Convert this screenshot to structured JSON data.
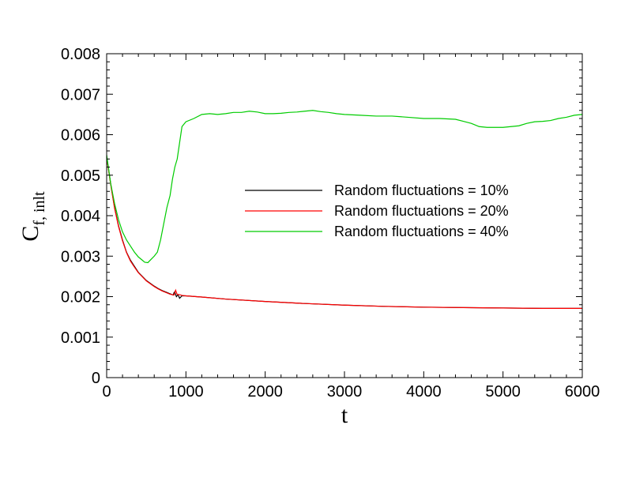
{
  "chart_data": {
    "type": "line",
    "title": "",
    "xlabel": "t",
    "ylabel": {
      "main": "C",
      "sub": "f, inlt"
    },
    "xlim": [
      0,
      6000
    ],
    "ylim": [
      0,
      0.008
    ],
    "xticks": [
      "0",
      "1000",
      "2000",
      "3000",
      "4000",
      "5000",
      "6000"
    ],
    "yticks": [
      "0",
      "0.001",
      "0.002",
      "0.003",
      "0.004",
      "0.005",
      "0.006",
      "0.007",
      "0.008"
    ],
    "grid": false,
    "legend_position": "center-right",
    "series": [
      {
        "name": "Random fluctuations = 10%",
        "color": "#000000",
        "points": [
          [
            0,
            0.00545
          ],
          [
            50,
            0.0048
          ],
          [
            100,
            0.0042
          ],
          [
            150,
            0.00375
          ],
          [
            200,
            0.0034
          ],
          [
            250,
            0.0031
          ],
          [
            300,
            0.0029
          ],
          [
            350,
            0.00275
          ],
          [
            400,
            0.0026
          ],
          [
            450,
            0.0025
          ],
          [
            500,
            0.0024
          ],
          [
            550,
            0.00233
          ],
          [
            600,
            0.00226
          ],
          [
            650,
            0.0022
          ],
          [
            700,
            0.00215
          ],
          [
            750,
            0.00211
          ],
          [
            800,
            0.00207
          ],
          [
            840,
            0.00204
          ],
          [
            850,
            0.0021
          ],
          [
            860,
            0.00212
          ],
          [
            870,
            0.00205
          ],
          [
            880,
            0.002
          ],
          [
            900,
            0.00205
          ],
          [
            920,
            0.00196
          ],
          [
            950,
            0.00202
          ],
          [
            1000,
            0.00202
          ],
          [
            1200,
            0.00199
          ],
          [
            1500,
            0.00194
          ],
          [
            2000,
            0.00188
          ],
          [
            2500,
            0.00183
          ],
          [
            3000,
            0.00179
          ],
          [
            3500,
            0.00176
          ],
          [
            4000,
            0.00174
          ],
          [
            4500,
            0.00173
          ],
          [
            5000,
            0.00172
          ],
          [
            5500,
            0.00171
          ],
          [
            6000,
            0.00171
          ]
        ]
      },
      {
        "name": "Random fluctuations = 20%",
        "color": "#ff0000",
        "points": [
          [
            0,
            0.00545
          ],
          [
            50,
            0.00478
          ],
          [
            100,
            0.00418
          ],
          [
            150,
            0.00373
          ],
          [
            200,
            0.00338
          ],
          [
            250,
            0.00309
          ],
          [
            300,
            0.00288
          ],
          [
            350,
            0.00273
          ],
          [
            400,
            0.00259
          ],
          [
            450,
            0.00249
          ],
          [
            500,
            0.00239
          ],
          [
            550,
            0.00232
          ],
          [
            600,
            0.00225
          ],
          [
            650,
            0.00219
          ],
          [
            700,
            0.00214
          ],
          [
            750,
            0.0021
          ],
          [
            800,
            0.00206
          ],
          [
            850,
            0.00204
          ],
          [
            870,
            0.00216
          ],
          [
            890,
            0.00205
          ],
          [
            920,
            0.00205
          ],
          [
            950,
            0.00203
          ],
          [
            1000,
            0.00202
          ],
          [
            1200,
            0.00199
          ],
          [
            1500,
            0.00194
          ],
          [
            2000,
            0.00188
          ],
          [
            2500,
            0.00183
          ],
          [
            3000,
            0.00179
          ],
          [
            3500,
            0.00176
          ],
          [
            4000,
            0.00174
          ],
          [
            4500,
            0.00173
          ],
          [
            5000,
            0.00172
          ],
          [
            5500,
            0.00171
          ],
          [
            6000,
            0.00171
          ]
        ]
      },
      {
        "name": "Random fluctuations = 40%",
        "color": "#00cc00",
        "points": [
          [
            0,
            0.0055
          ],
          [
            50,
            0.0048
          ],
          [
            100,
            0.0043
          ],
          [
            150,
            0.0039
          ],
          [
            200,
            0.0036
          ],
          [
            250,
            0.0034
          ],
          [
            300,
            0.00325
          ],
          [
            350,
            0.0031
          ],
          [
            400,
            0.00298
          ],
          [
            450,
            0.0029
          ],
          [
            480,
            0.00285
          ],
          [
            520,
            0.00284
          ],
          [
            560,
            0.00292
          ],
          [
            600,
            0.003
          ],
          [
            640,
            0.0031
          ],
          [
            680,
            0.0034
          ],
          [
            720,
            0.0038
          ],
          [
            760,
            0.0042
          ],
          [
            800,
            0.0045
          ],
          [
            830,
            0.0049
          ],
          [
            860,
            0.0052
          ],
          [
            890,
            0.0054
          ],
          [
            920,
            0.0058
          ],
          [
            950,
            0.0062
          ],
          [
            1000,
            0.00632
          ],
          [
            1100,
            0.0064
          ],
          [
            1200,
            0.0065
          ],
          [
            1300,
            0.00652
          ],
          [
            1400,
            0.0065
          ],
          [
            1500,
            0.00652
          ],
          [
            1600,
            0.00655
          ],
          [
            1700,
            0.00655
          ],
          [
            1800,
            0.00658
          ],
          [
            1900,
            0.00656
          ],
          [
            2000,
            0.00652
          ],
          [
            2100,
            0.00652
          ],
          [
            2200,
            0.00653
          ],
          [
            2300,
            0.00655
          ],
          [
            2400,
            0.00656
          ],
          [
            2500,
            0.00658
          ],
          [
            2600,
            0.0066
          ],
          [
            2700,
            0.00657
          ],
          [
            2800,
            0.00655
          ],
          [
            2900,
            0.00652
          ],
          [
            3000,
            0.0065
          ],
          [
            3200,
            0.00648
          ],
          [
            3400,
            0.00646
          ],
          [
            3600,
            0.00646
          ],
          [
            3800,
            0.00643
          ],
          [
            4000,
            0.0064
          ],
          [
            4200,
            0.0064
          ],
          [
            4400,
            0.00638
          ],
          [
            4500,
            0.00633
          ],
          [
            4600,
            0.00628
          ],
          [
            4700,
            0.0062
          ],
          [
            4800,
            0.00618
          ],
          [
            4900,
            0.00618
          ],
          [
            5000,
            0.00618
          ],
          [
            5100,
            0.0062
          ],
          [
            5200,
            0.00622
          ],
          [
            5300,
            0.00628
          ],
          [
            5400,
            0.00632
          ],
          [
            5500,
            0.00633
          ],
          [
            5600,
            0.00635
          ],
          [
            5700,
            0.0064
          ],
          [
            5800,
            0.00643
          ],
          [
            5900,
            0.00648
          ],
          [
            6000,
            0.0065
          ]
        ]
      }
    ]
  }
}
